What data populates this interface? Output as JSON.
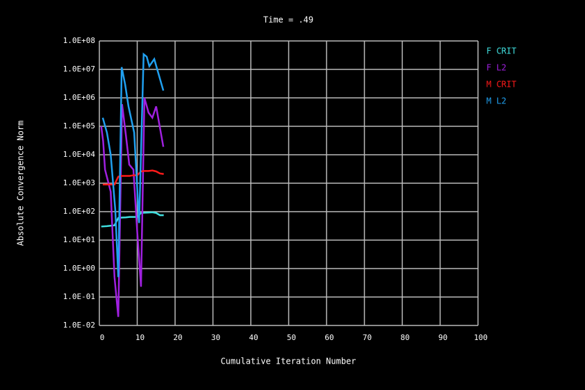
{
  "chart_data": {
    "type": "line",
    "title": "Time = .49",
    "x_label": "Cumulative Iteration Number",
    "y_label": "Absolute Convergence Norm",
    "log_y": true,
    "grid": true,
    "legend": "right",
    "xlim": [
      0,
      100
    ],
    "xticks": [
      0,
      10,
      20,
      30,
      40,
      50,
      60,
      70,
      80,
      90,
      100
    ],
    "ylim": [
      0.01,
      100000000
    ],
    "yticks": [
      {
        "value": 0.01,
        "label": "1.0E-02"
      },
      {
        "value": 0.1,
        "label": "1.0E-01"
      },
      {
        "value": 1,
        "label": "1.0E+00"
      },
      {
        "value": 10,
        "label": "1.0E+01"
      },
      {
        "value": 100,
        "label": "1.0E+02"
      },
      {
        "value": 1000,
        "label": "1.0E+03"
      },
      {
        "value": 10000,
        "label": "1.0E+04"
      },
      {
        "value": 100000,
        "label": "1.0E+05"
      },
      {
        "value": 1000000,
        "label": "1.0E+06"
      },
      {
        "value": 10000000,
        "label": "1.0E+07"
      },
      {
        "value": 100000000,
        "label": "1.0E+08"
      }
    ],
    "series": [
      {
        "name": "F CRIT",
        "color": "#40e0e0",
        "x": [
          0.5,
          2,
          3,
          4,
          5,
          6,
          7,
          8,
          9,
          10,
          11,
          12,
          13,
          14,
          15,
          16,
          17
        ],
        "values": [
          30,
          31,
          32,
          33,
          60,
          62,
          63,
          65,
          65,
          65,
          90,
          92,
          93,
          95,
          90,
          75,
          75
        ]
      },
      {
        "name": "F L2",
        "color": "#a020e0",
        "x": [
          0.5,
          1,
          1.5,
          3,
          4,
          5,
          6,
          7,
          7.9,
          9,
          10,
          11,
          11.9,
          13,
          14,
          15,
          16.9
        ],
        "values": [
          100000,
          30000,
          3000,
          500,
          0.5,
          0.02,
          600000,
          50000,
          4500,
          3000,
          20,
          0.23,
          1000000,
          300000,
          200000,
          500000,
          19000
        ]
      },
      {
        "name": "M CRIT",
        "color": "#ff1a1a",
        "x": [
          0.9,
          2,
          3,
          4,
          5,
          6,
          7,
          8,
          9,
          10,
          11,
          12,
          13,
          14,
          15,
          16,
          17
        ],
        "values": [
          900,
          900,
          900,
          900,
          1700,
          1800,
          1800,
          1800,
          1900,
          1900,
          2600,
          2700,
          2700,
          2800,
          2600,
          2200,
          2100
        ]
      },
      {
        "name": "M L2",
        "color": "#20a0f0",
        "x": [
          0.9,
          2,
          3,
          4.2,
          5,
          5.9,
          6.8,
          7.7,
          9.2,
          10.5,
          11.7,
          12.5,
          13.2,
          14.5,
          15.5,
          16.9
        ],
        "values": [
          200000,
          60000,
          10000,
          120,
          0.5,
          12000000,
          3000000,
          500000,
          60000,
          40,
          34000000,
          28000000,
          13000000,
          23000000,
          8000000,
          1800000
        ]
      }
    ]
  }
}
